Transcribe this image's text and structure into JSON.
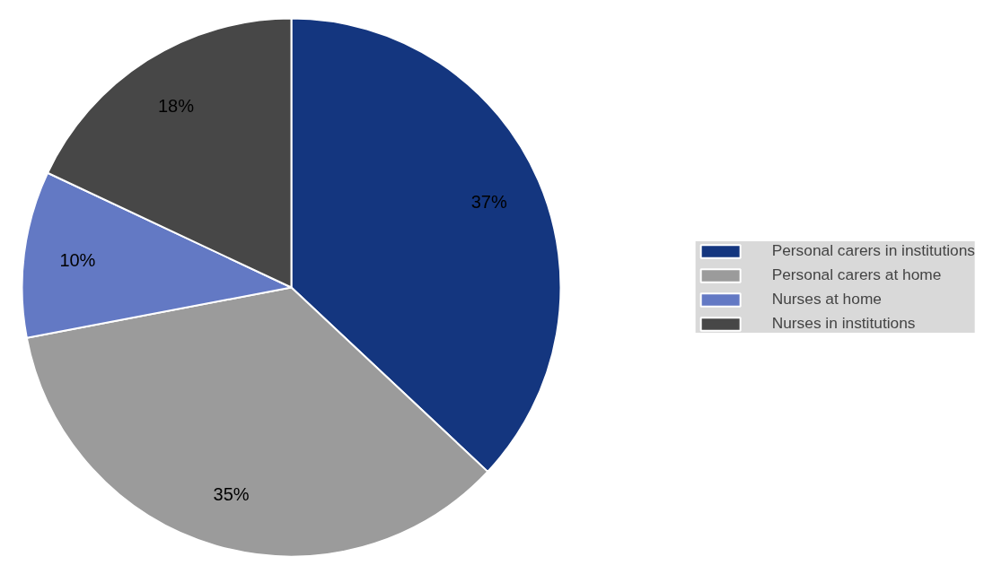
{
  "chart_data": {
    "type": "pie",
    "categories": [
      "Personal carers in institutions",
      "Personal carers at home",
      "Nurses at home",
      "Nurses in institutions"
    ],
    "values": [
      37,
      35,
      10,
      18
    ],
    "colors": [
      "#14367f",
      "#9b9b9b",
      "#6379c4",
      "#474747"
    ],
    "value_labels": [
      "37%",
      "35%",
      "10%",
      "18%"
    ],
    "legend": "right"
  }
}
